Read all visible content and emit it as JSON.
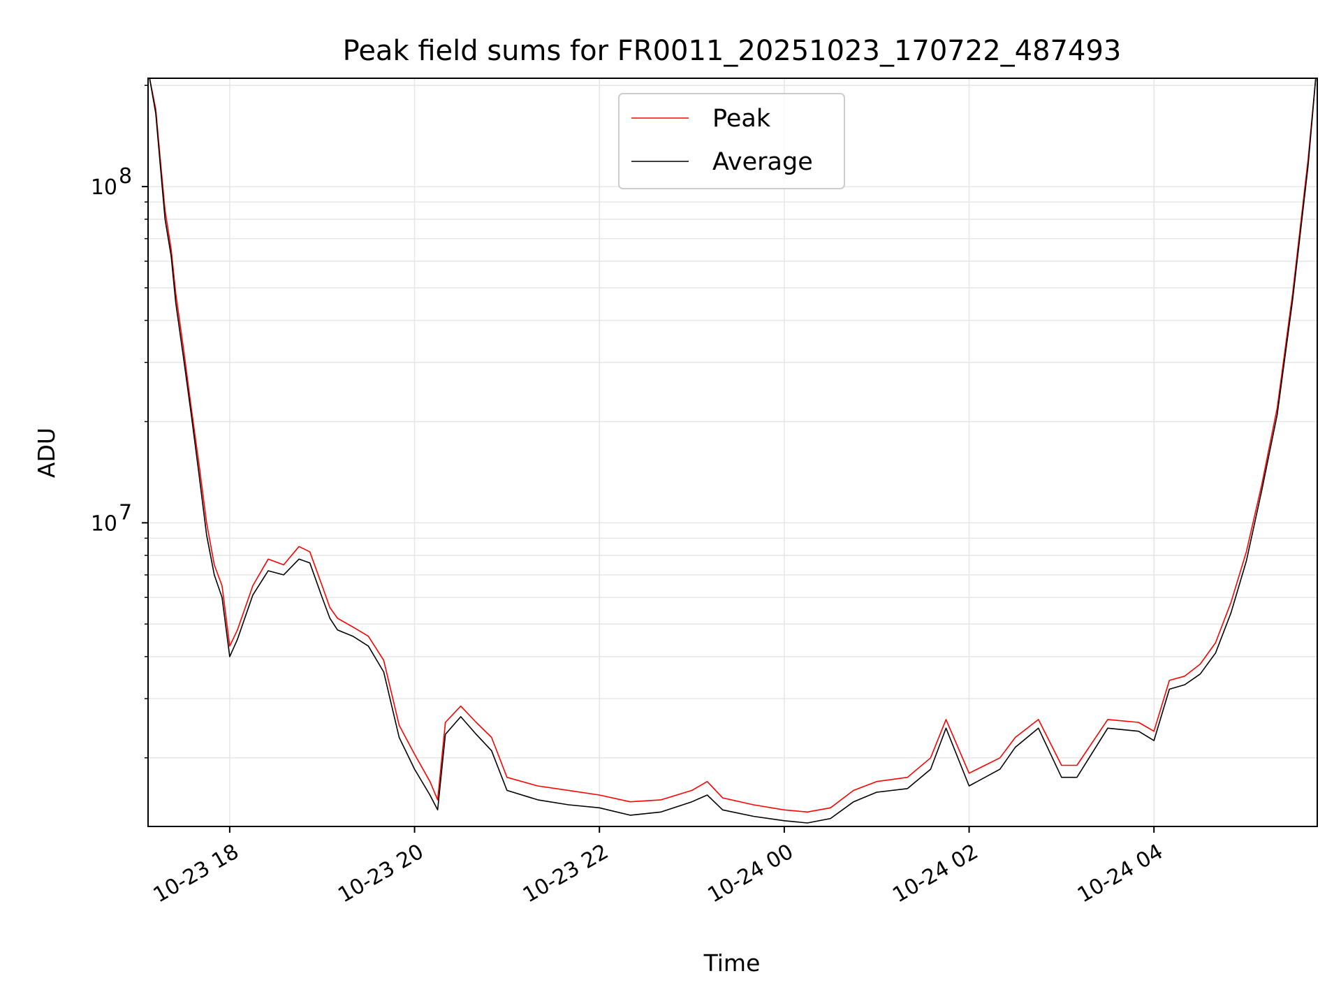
{
  "chart_data": {
    "type": "line",
    "title": "Peak field sums for FR0011_20251023_170722_487493",
    "xlabel": "Time",
    "ylabel": "ADU",
    "yscale": "log",
    "grid": true,
    "legend_position": "top-center",
    "colors": {
      "Peak": "#ff0000",
      "Average": "#000000"
    },
    "xlim": [
      "2025-10-23 17:07",
      "2025-10-24 05:46"
    ],
    "ylim": [
      1250000,
      210000000
    ],
    "x_ticks": [
      "10-23 18",
      "10-23 20",
      "10-23 22",
      "10-24 00",
      "10-24 02",
      "10-24 04"
    ],
    "y_ticks": [
      {
        "value": 10000000,
        "base": "10",
        "exp": "7"
      },
      {
        "value": 100000000,
        "base": "10",
        "exp": "8"
      }
    ],
    "x": [
      "2025-10-23 17:08",
      "2025-10-23 17:12",
      "2025-10-23 17:15",
      "2025-10-23 17:18",
      "2025-10-23 17:22",
      "2025-10-23 17:25",
      "2025-10-23 17:30",
      "2025-10-23 17:35",
      "2025-10-23 17:40",
      "2025-10-23 17:45",
      "2025-10-23 17:50",
      "2025-10-23 17:55",
      "2025-10-23 18:00",
      "2025-10-23 18:05",
      "2025-10-23 18:15",
      "2025-10-23 18:25",
      "2025-10-23 18:35",
      "2025-10-23 18:45",
      "2025-10-23 18:52",
      "2025-10-23 19:00",
      "2025-10-23 19:05",
      "2025-10-23 19:10",
      "2025-10-23 19:20",
      "2025-10-23 19:30",
      "2025-10-23 19:40",
      "2025-10-23 19:50",
      "2025-10-23 20:00",
      "2025-10-23 20:10",
      "2025-10-23 20:15",
      "2025-10-23 20:20",
      "2025-10-23 20:30",
      "2025-10-23 20:40",
      "2025-10-23 20:50",
      "2025-10-23 21:00",
      "2025-10-23 21:20",
      "2025-10-23 21:40",
      "2025-10-23 22:00",
      "2025-10-23 22:20",
      "2025-10-23 22:40",
      "2025-10-23 23:00",
      "2025-10-23 23:10",
      "2025-10-23 23:20",
      "2025-10-23 23:40",
      "2025-10-24 00:00",
      "2025-10-24 00:15",
      "2025-10-24 00:30",
      "2025-10-24 00:45",
      "2025-10-24 01:00",
      "2025-10-24 01:20",
      "2025-10-24 01:35",
      "2025-10-24 01:45",
      "2025-10-24 02:00",
      "2025-10-24 02:20",
      "2025-10-24 02:30",
      "2025-10-24 02:45",
      "2025-10-24 03:00",
      "2025-10-24 03:10",
      "2025-10-24 03:30",
      "2025-10-24 03:50",
      "2025-10-24 04:00",
      "2025-10-24 04:10",
      "2025-10-24 04:20",
      "2025-10-24 04:30",
      "2025-10-24 04:40",
      "2025-10-24 04:50",
      "2025-10-24 05:00",
      "2025-10-24 05:10",
      "2025-10-24 05:20",
      "2025-10-24 05:30",
      "2025-10-24 05:40",
      "2025-10-24 05:45"
    ],
    "series": [
      {
        "name": "Peak",
        "values": [
          210000000,
          170000000,
          120000000,
          85000000,
          65000000,
          48000000,
          33000000,
          22000000,
          15000000,
          10000000,
          7500000,
          6500000,
          4300000,
          4800000,
          6500000,
          7800000,
          7500000,
          8500000,
          8200000,
          6500000,
          5600000,
          5200000,
          4900000,
          4600000,
          3900000,
          2500000,
          2050000,
          1700000,
          1500000,
          2550000,
          2850000,
          2550000,
          2300000,
          1750000,
          1650000,
          1600000,
          1550000,
          1480000,
          1500000,
          1600000,
          1700000,
          1520000,
          1450000,
          1400000,
          1380000,
          1420000,
          1600000,
          1700000,
          1750000,
          2000000,
          2600000,
          1800000,
          2000000,
          2300000,
          2600000,
          1900000,
          1900000,
          2600000,
          2550000,
          2400000,
          3400000,
          3500000,
          3800000,
          4400000,
          5800000,
          8200000,
          13000000,
          22000000,
          48000000,
          120000000,
          210000000
        ]
      },
      {
        "name": "Average",
        "values": [
          210000000,
          165000000,
          115000000,
          80000000,
          62000000,
          45000000,
          31000000,
          21000000,
          14000000,
          9200000,
          7000000,
          6000000,
          4000000,
          4500000,
          6100000,
          7200000,
          7000000,
          7800000,
          7600000,
          6000000,
          5200000,
          4800000,
          4600000,
          4300000,
          3600000,
          2300000,
          1850000,
          1550000,
          1400000,
          2350000,
          2650000,
          2350000,
          2100000,
          1600000,
          1500000,
          1450000,
          1420000,
          1350000,
          1380000,
          1480000,
          1550000,
          1400000,
          1340000,
          1300000,
          1280000,
          1320000,
          1480000,
          1580000,
          1620000,
          1850000,
          2450000,
          1650000,
          1850000,
          2150000,
          2450000,
          1750000,
          1750000,
          2450000,
          2400000,
          2250000,
          3200000,
          3300000,
          3550000,
          4100000,
          5400000,
          7700000,
          12500000,
          21000000,
          46000000,
          115000000,
          210000000
        ]
      }
    ]
  }
}
